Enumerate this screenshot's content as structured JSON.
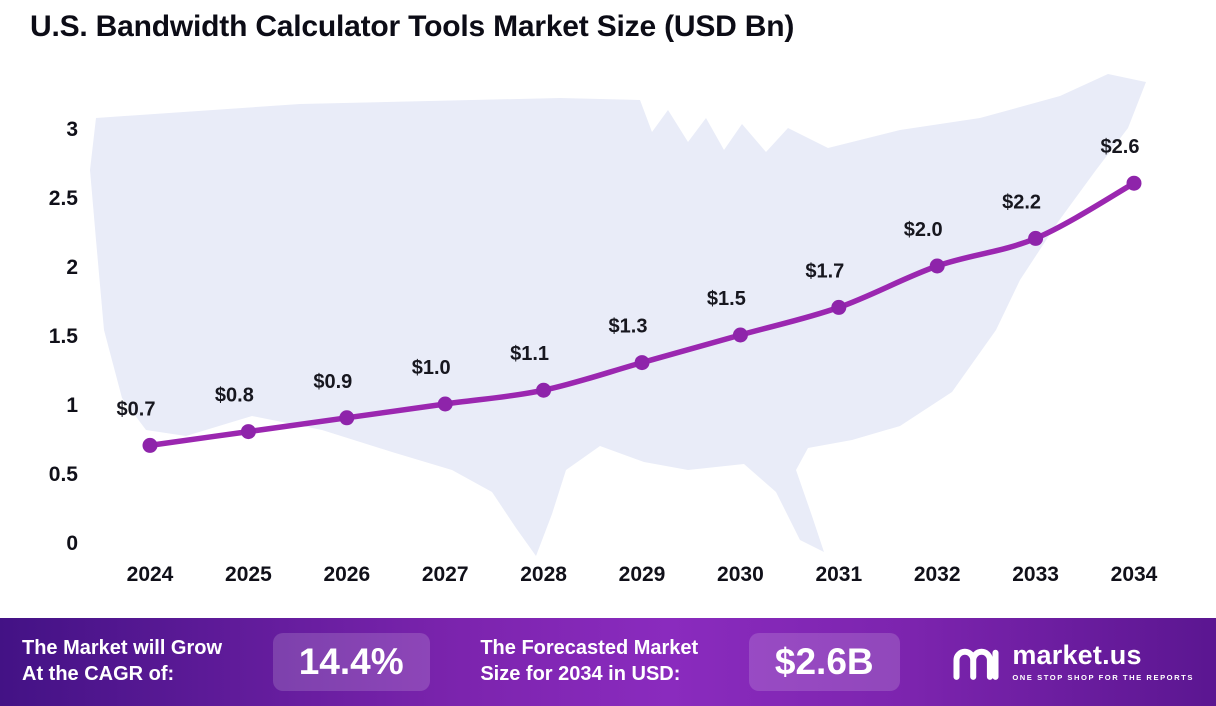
{
  "title": "U.S. Bandwidth Calculator Tools Market Size (USD Bn)",
  "chart_data": {
    "type": "line",
    "title": "U.S. Bandwidth Calculator Tools Market Size (USD Bn)",
    "categories": [
      "2024",
      "2025",
      "2026",
      "2027",
      "2028",
      "2029",
      "2030",
      "2031",
      "2032",
      "2033",
      "2034"
    ],
    "values": [
      0.7,
      0.8,
      0.9,
      1.0,
      1.1,
      1.3,
      1.5,
      1.7,
      2.0,
      2.2,
      2.6
    ],
    "point_labels": [
      "$0.7",
      "$0.8",
      "$0.9",
      "$1.0",
      "$1.1",
      "$1.3",
      "$1.5",
      "$1.7",
      "$2.0",
      "$2.2",
      "$2.6"
    ],
    "y_ticks": [
      "0",
      "0.5",
      "1",
      "1.5",
      "2",
      "2.5",
      "3"
    ],
    "ylim": [
      0,
      3
    ],
    "xlabel": "",
    "ylabel": "",
    "grid": false,
    "legend": "none",
    "line_color": "#9B27B0",
    "marker_color": "#8E24AA",
    "background_map": "united-states-silhouette",
    "map_color": "#E9ECF8"
  },
  "footer": {
    "cagr_label_line1": "The Market will Grow",
    "cagr_label_line2": "At the CAGR of:",
    "cagr_value": "14.4%",
    "forecast_label_line1": "The Forecasted Market",
    "forecast_label_line2": "Size for 2034 in USD:",
    "forecast_value": "$2.6B",
    "brand_name": "market.us",
    "brand_tagline": "ONE STOP SHOP FOR THE REPORTS"
  }
}
